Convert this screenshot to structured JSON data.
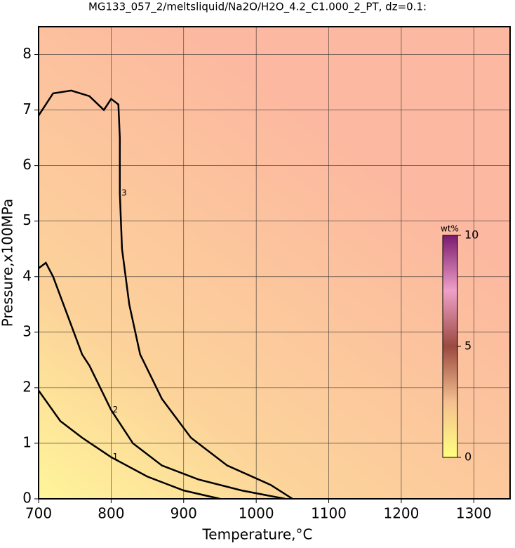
{
  "chart_data": {
    "type": "contour",
    "title": "MG133_057_2/meltsliquid/Na2O/H2O_4.2_C1.000_2_PT, dz=0.1:",
    "x_label": "Temperature,°C",
    "y_label": "Pressure,x100MPa",
    "xlim": [
      700,
      1350
    ],
    "xticks": [
      700,
      800,
      900,
      1000,
      1100,
      1200,
      1300
    ],
    "ylim": [
      0,
      8.5
    ],
    "yticks": [
      0,
      1,
      2,
      3,
      4,
      5,
      6,
      7,
      8
    ],
    "grid": true,
    "colorbar": {
      "label": "wt%",
      "lim": [
        0,
        10
      ],
      "ticks": [
        0,
        5,
        10
      ]
    },
    "contours": [
      {
        "level": 1,
        "x": [
          700,
          730,
          760,
          800,
          850,
          900,
          950
        ],
        "y": [
          1.95,
          1.4,
          1.1,
          0.75,
          0.4,
          0.15,
          0
        ]
      },
      {
        "level": 2,
        "x": [
          700,
          710,
          720,
          740,
          760,
          770,
          800,
          830,
          870,
          920,
          980,
          1040
        ],
        "y": [
          4.15,
          4.25,
          4.0,
          3.3,
          2.6,
          2.4,
          1.6,
          1.0,
          0.6,
          0.35,
          0.15,
          0
        ]
      },
      {
        "level": 3,
        "x": [
          700,
          720,
          745,
          770,
          790,
          800,
          810,
          812,
          812,
          815,
          825,
          840,
          870,
          910,
          960,
          1020,
          1050
        ],
        "y": [
          6.9,
          7.3,
          7.35,
          7.25,
          7.0,
          7.2,
          7.1,
          6.5,
          5.5,
          4.5,
          3.5,
          2.6,
          1.8,
          1.1,
          0.6,
          0.25,
          0
        ]
      }
    ]
  }
}
